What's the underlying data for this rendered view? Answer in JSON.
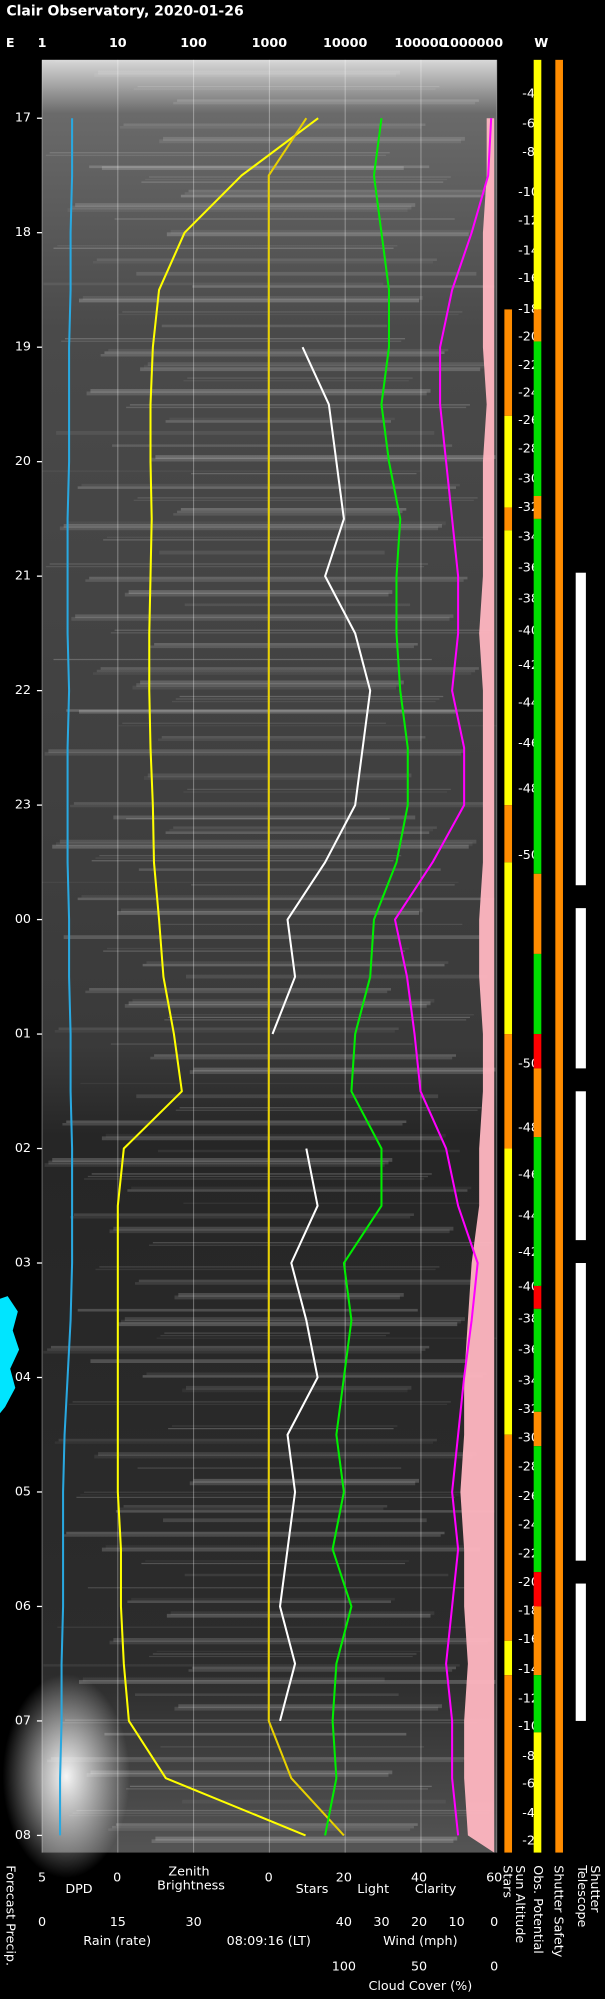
{
  "chart_data": {
    "type": "line",
    "title": "Clair Observatory, 2020-01-26",
    "timestamp": "08:09:16 (LT)",
    "top_axis": {
      "left_label": "E",
      "right_label": "W",
      "log": true,
      "xlim": [
        1,
        1000000
      ],
      "xticks": [
        1,
        10,
        100,
        1000,
        10000,
        100000,
        1000000
      ],
      "grid": true
    },
    "ylim": [
      16.49,
      32.15
    ],
    "yticks": [
      17,
      18,
      19,
      20,
      21,
      22,
      23,
      {
        "value": 24,
        "label": "00"
      },
      {
        "value": 25,
        "label": "01"
      },
      {
        "value": 26,
        "label": "02"
      },
      {
        "value": 27,
        "label": "03"
      },
      {
        "value": 28,
        "label": "04"
      },
      {
        "value": 29,
        "label": "05"
      },
      {
        "value": 30,
        "label": "06"
      },
      {
        "value": 31,
        "label": "07"
      },
      {
        "value": 32,
        "label": "08"
      }
    ],
    "axes": {
      "dpd": {
        "lim": [
          5,
          0
        ],
        "ticks": [
          5,
          0
        ]
      },
      "rain": {
        "lim": [
          0,
          30
        ],
        "ticks": [
          0,
          15,
          30
        ],
        "label": "Rain (rate)",
        "color": "#00e5ff"
      },
      "sky": {
        "lim": [
          0,
          60
        ],
        "ticks": [
          0,
          20,
          40,
          60
        ]
      },
      "wind": {
        "lim": [
          40,
          0
        ],
        "ticks": [
          40,
          30,
          20,
          10,
          0
        ]
      },
      "cloud": {
        "lim": [
          100,
          0
        ],
        "ticks": [
          100,
          50,
          0
        ]
      }
    },
    "x": [
      17,
      17.5,
      18,
      18.5,
      19,
      19.5,
      20,
      20.5,
      21,
      21.5,
      22,
      22.5,
      23,
      23.5,
      24,
      24.5,
      25,
      25.5,
      26,
      26.5,
      27,
      27.5,
      28,
      28.5,
      29,
      29.5,
      30,
      30.5,
      31,
      31.5,
      32
    ],
    "series": [
      {
        "name": "DPD",
        "color": "#29a8e0",
        "axis": "dpd",
        "values": [
          3.0,
          3.0,
          3.1,
          3.1,
          3.2,
          3.2,
          3.2,
          3.3,
          3.3,
          3.3,
          3.2,
          3.3,
          3.3,
          3.3,
          3.2,
          3.2,
          3.1,
          3.1,
          3.0,
          3.0,
          3.0,
          3.1,
          3.3,
          3.5,
          3.6,
          3.6,
          3.6,
          3.7,
          3.7,
          3.8,
          3.8
        ]
      },
      {
        "name": "Zenith Brightness",
        "color": "#ffff00",
        "axis": "top",
        "values": [
          4400,
          430,
          76,
          35,
          29,
          27,
          27,
          28,
          27,
          26,
          26,
          27,
          29,
          30,
          35,
          40,
          55,
          70,
          12,
          10,
          10,
          10,
          10,
          10,
          10,
          11,
          11,
          12,
          14,
          43,
          3000
        ]
      },
      {
        "name": "Stars",
        "color": "#ffffff",
        "axis": "sky",
        "values": [
          null,
          null,
          null,
          null,
          9,
          16,
          18,
          20,
          15,
          23,
          27,
          25,
          23,
          15,
          5,
          7,
          1,
          null,
          10,
          13,
          6,
          10,
          13,
          5,
          7,
          5,
          3,
          7,
          3,
          null,
          null
        ]
      },
      {
        "name": "Light",
        "color": "#e8d000",
        "axis": "sky",
        "values": [
          10,
          0,
          0,
          0,
          0,
          0,
          0,
          0,
          0,
          0,
          0,
          0,
          0,
          0,
          0,
          0,
          0,
          0,
          0,
          0,
          0,
          0,
          0,
          0,
          0,
          0,
          0,
          0,
          0,
          6,
          20
        ]
      },
      {
        "name": "Clarity",
        "color": "#00ee00",
        "axis": "sky",
        "values": [
          30,
          28,
          30,
          32,
          32,
          30,
          32,
          35,
          34,
          34,
          35,
          37,
          37,
          34,
          28,
          27,
          23,
          22,
          30,
          30,
          20,
          22,
          20,
          18,
          20,
          17,
          22,
          18,
          17,
          18,
          15
        ]
      },
      {
        "name": "Wind (mph)",
        "color": "#ffb6c1",
        "axis": "wind",
        "fill": true,
        "values": [
          2,
          2,
          3,
          3,
          3,
          2,
          3,
          3,
          3,
          4,
          3,
          3,
          3,
          3,
          4,
          4,
          3,
          3,
          4,
          4,
          6,
          7,
          8,
          8,
          9,
          8,
          8,
          7,
          8,
          8,
          7
        ]
      },
      {
        "name": "Cloud Cover (%)",
        "color": "#ff00ff",
        "axis": "cloud",
        "values": [
          2,
          4,
          15,
          28,
          36,
          36,
          32,
          28,
          24,
          24,
          28,
          20,
          20,
          41,
          66,
          58,
          53,
          49,
          32,
          24,
          11,
          15,
          20,
          24,
          28,
          24,
          28,
          32,
          28,
          28,
          24
        ]
      }
    ],
    "sun_altitude": {
      "name": "Sun Altitude",
      "x": [
        16.79,
        17.05,
        17.3,
        17.65,
        17.9,
        18.16,
        18.4,
        18.67,
        18.91,
        19.16,
        19.4,
        19.64,
        19.89,
        20.15,
        20.4,
        20.66,
        20.93,
        21.2,
        21.48,
        21.78,
        22.11,
        22.46,
        22.86,
        23.44,
        25.26,
        25.82,
        26.23,
        26.59,
        26.91,
        27.21,
        27.49,
        27.76,
        28.03,
        28.28,
        28.53,
        28.78,
        29.04,
        29.29,
        29.54,
        29.79,
        30.04,
        30.29,
        30.55,
        30.81,
        31.05,
        31.31,
        31.55,
        31.81,
        32.05
      ],
      "values": [
        -4,
        -6,
        -8,
        -10,
        -12,
        -14,
        -16,
        -18,
        -20,
        -22,
        -24,
        -26,
        -28,
        -30,
        -32,
        -34,
        -36,
        -38,
        -40,
        -42,
        -44,
        -46,
        -48,
        -50,
        -50,
        -48,
        -46,
        -44,
        -42,
        -40,
        -38,
        -36,
        -34,
        -32,
        -30,
        -28,
        -26,
        -24,
        -22,
        -20,
        -18,
        -16,
        -14,
        -12,
        -10,
        -8,
        -6,
        -4,
        -2
      ]
    },
    "forecast_precip_label": "Forecast Precip.",
    "columns": [
      {
        "name": "Stars",
        "segments": [
          {
            "from": 18.67,
            "to": 19.6,
            "color": "#ff8c00"
          },
          {
            "from": 19.6,
            "to": 20.4,
            "color": "#ffff00"
          },
          {
            "from": 20.4,
            "to": 20.6,
            "color": "#ff8c00"
          },
          {
            "from": 20.6,
            "to": 23.0,
            "color": "#ffff00"
          },
          {
            "from": 23.0,
            "to": 23.5,
            "color": "#ff8c00"
          },
          {
            "from": 23.5,
            "to": 25.0,
            "color": "#ffff00"
          },
          {
            "from": 25.0,
            "to": 26.0,
            "color": "#ff8c00"
          },
          {
            "from": 26.0,
            "to": 28.5,
            "color": "#ffff00"
          },
          {
            "from": 28.5,
            "to": 30.3,
            "color": "#ff8c00"
          },
          {
            "from": 30.3,
            "to": 30.6,
            "color": "#ffff00"
          },
          {
            "from": 30.6,
            "to": 32.15,
            "color": "#ff8c00"
          }
        ]
      },
      {
        "name": "Obs. Potential",
        "segments": [
          {
            "from": 16.49,
            "to": 18.67,
            "color": "#ffff00"
          },
          {
            "from": 18.67,
            "to": 18.95,
            "color": "#ff8c00"
          },
          {
            "from": 18.95,
            "to": 20.3,
            "color": "#00dd00"
          },
          {
            "from": 20.3,
            "to": 20.5,
            "color": "#ff8c00"
          },
          {
            "from": 20.5,
            "to": 23.6,
            "color": "#00dd00"
          },
          {
            "from": 23.6,
            "to": 24.3,
            "color": "#ff8c00"
          },
          {
            "from": 24.3,
            "to": 25.0,
            "color": "#00dd00"
          },
          {
            "from": 25.0,
            "to": 25.3,
            "color": "#ff0000"
          },
          {
            "from": 25.3,
            "to": 25.9,
            "color": "#ff8c00"
          },
          {
            "from": 25.9,
            "to": 27.2,
            "color": "#00dd00"
          },
          {
            "from": 27.2,
            "to": 27.4,
            "color": "#ff0000"
          },
          {
            "from": 27.4,
            "to": 28.3,
            "color": "#00dd00"
          },
          {
            "from": 28.3,
            "to": 28.6,
            "color": "#ff8c00"
          },
          {
            "from": 28.6,
            "to": 29.7,
            "color": "#00dd00"
          },
          {
            "from": 29.7,
            "to": 30.0,
            "color": "#ff0000"
          },
          {
            "from": 30.0,
            "to": 30.6,
            "color": "#ff8c00"
          },
          {
            "from": 30.6,
            "to": 31.1,
            "color": "#00dd00"
          },
          {
            "from": 31.1,
            "to": 32.15,
            "color": "#ffff00"
          }
        ]
      },
      {
        "name": "Shutter Safety",
        "segments": [
          {
            "from": 16.49,
            "to": 32.15,
            "color": "#ff8c00"
          }
        ]
      },
      {
        "name": "Telescope Shutter",
        "segments": [
          {
            "from": 20.97,
            "to": 23.7,
            "color": "#ffffff"
          },
          {
            "from": 23.9,
            "to": 25.3,
            "color": "#ffffff"
          },
          {
            "from": 25.5,
            "to": 26.8,
            "color": "#ffffff"
          },
          {
            "from": 27.0,
            "to": 29.6,
            "color": "#ffffff"
          },
          {
            "from": 29.8,
            "to": 31.0,
            "color": "#ffffff"
          }
        ]
      }
    ]
  }
}
